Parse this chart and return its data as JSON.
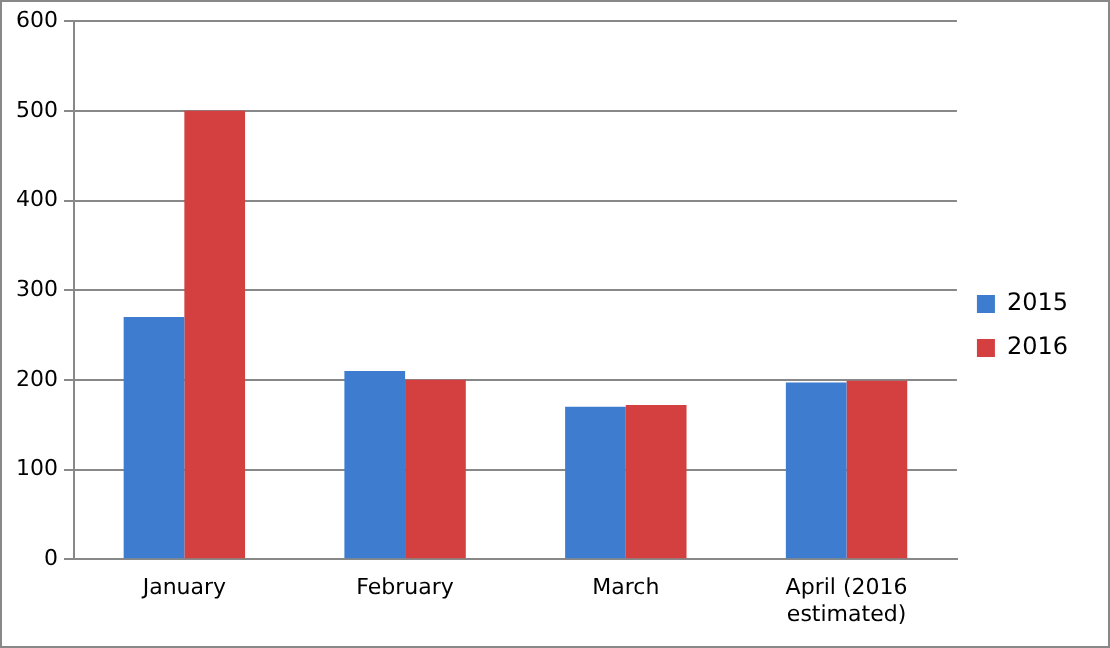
{
  "chart_data": {
    "type": "bar",
    "categories": [
      "January",
      "February",
      "March",
      "April (2016 estimated)"
    ],
    "series": [
      {
        "name": "2015",
        "color": "#3d7ccf",
        "values": [
          270,
          210,
          170,
          197
        ]
      },
      {
        "name": "2016",
        "color": "#d43f3f",
        "values": [
          500,
          200,
          172,
          199
        ]
      }
    ],
    "ylim": [
      0,
      600
    ],
    "yticks": [
      0,
      100,
      200,
      300,
      400,
      500,
      600
    ],
    "grid": "y",
    "legend": "right"
  }
}
